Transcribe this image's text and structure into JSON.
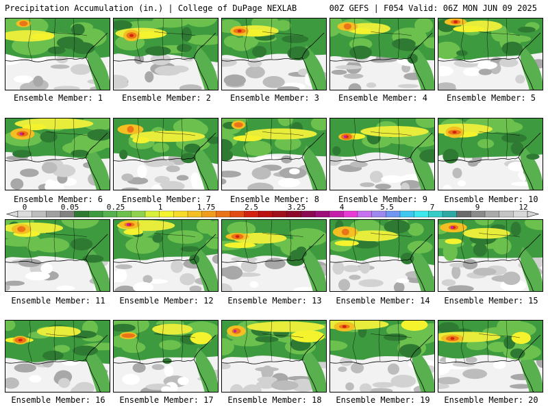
{
  "header": {
    "title_left": "Precipitation Accumulation (in.) | College of DuPage NEXLAB",
    "title_right": "00Z GEFS | F054 Valid: 06Z MON JUN 09 2025"
  },
  "colorbar": {
    "labels": [
      "0",
      "0.05",
      "0.25",
      "1",
      "1.75",
      "2.5",
      "3.25",
      "4",
      "5.5",
      "7",
      "9",
      "12"
    ],
    "colors": [
      "#dcdcdc",
      "#bebebe",
      "#a0a0a0",
      "#828282",
      "#2f7a33",
      "#3e9a3e",
      "#58b04e",
      "#6cc04e",
      "#8fd14f",
      "#d8f03a",
      "#f4f32e",
      "#f6db28",
      "#f3bf22",
      "#f09c1c",
      "#ea7418",
      "#e24b12",
      "#d4200e",
      "#bb1010",
      "#a0101c",
      "#8c0a28",
      "#8a0a52",
      "#9e0f7a",
      "#c41fa8",
      "#e83ad4",
      "#c770f0",
      "#9c88ee",
      "#6f96f0",
      "#3ec8f0",
      "#3ee8ee",
      "#36cdc6",
      "#2ea8a2",
      "#6a6a6a",
      "#8a8a8a",
      "#aaaaaa",
      "#c4c4c4",
      "#d8d8d8"
    ]
  },
  "members": [
    {
      "label": "Ensemble Member: 1"
    },
    {
      "label": "Ensemble Member: 2"
    },
    {
      "label": "Ensemble Member: 3"
    },
    {
      "label": "Ensemble Member: 4"
    },
    {
      "label": "Ensemble Member: 5"
    },
    {
      "label": "Ensemble Member: 6"
    },
    {
      "label": "Ensemble Member: 7"
    },
    {
      "label": "Ensemble Member: 8"
    },
    {
      "label": "Ensemble Member: 9"
    },
    {
      "label": "Ensemble Member: 10"
    },
    {
      "label": "Ensemble Member: 11"
    },
    {
      "label": "Ensemble Member: 12"
    },
    {
      "label": "Ensemble Member: 13"
    },
    {
      "label": "Ensemble Member: 14"
    },
    {
      "label": "Ensemble Member: 15"
    },
    {
      "label": "Ensemble Member: 16"
    },
    {
      "label": "Ensemble Member: 17"
    },
    {
      "label": "Ensemble Member: 18"
    },
    {
      "label": "Ensemble Member: 19"
    },
    {
      "label": "Ensemble Member: 20"
    }
  ]
}
